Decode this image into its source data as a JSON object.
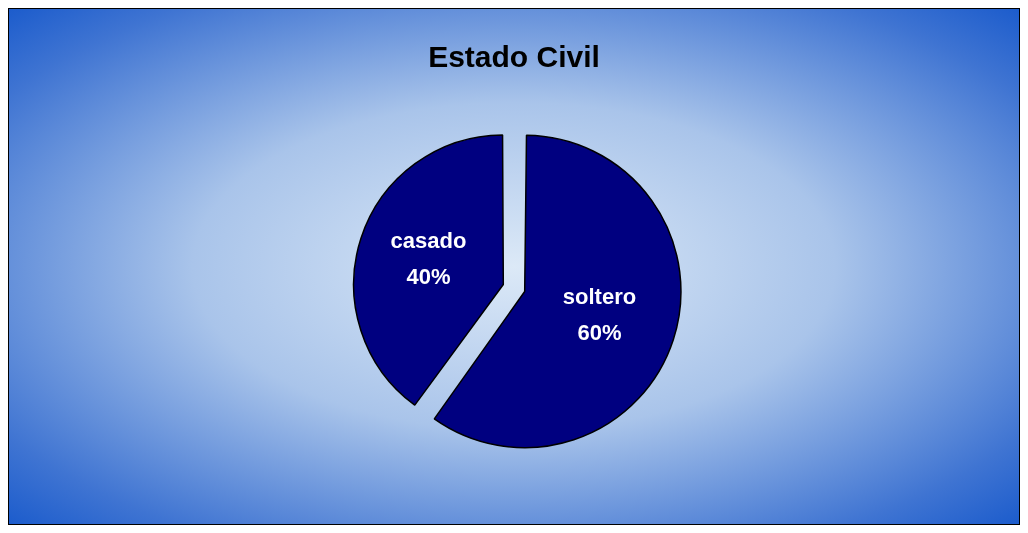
{
  "chart_data": {
    "type": "pie",
    "title": "Estado Civil",
    "categories": [
      "soltero",
      "casado"
    ],
    "values": [
      60,
      40
    ],
    "value_labels": [
      "60%",
      "40%"
    ],
    "colors": [
      "#000080",
      "#000080"
    ],
    "legend": false
  }
}
